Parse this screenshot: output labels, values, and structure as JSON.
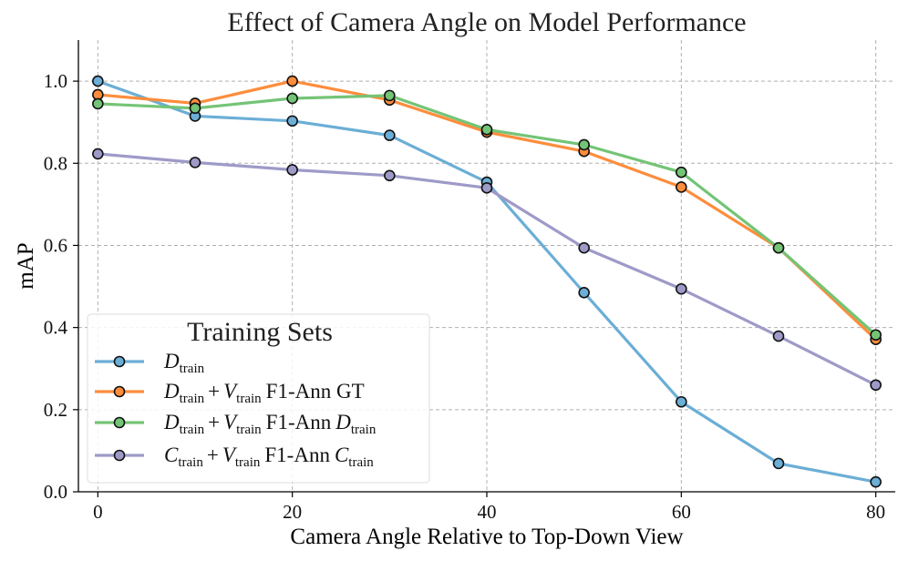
{
  "chart_data": {
    "type": "line",
    "title": "Effect of Camera Angle on Model Performance",
    "xlabel": "Camera Angle Relative to Top-Down View",
    "ylabel": "mAP",
    "xlim": [
      -2,
      82
    ],
    "ylim": [
      0.0,
      1.1
    ],
    "xticks": [
      0,
      20,
      40,
      60,
      80
    ],
    "yticks": [
      0.0,
      0.2,
      0.4,
      0.6,
      0.8,
      1.0
    ],
    "xtick_labels": [
      "0",
      "20",
      "40",
      "60",
      "80"
    ],
    "ytick_labels": [
      "0.0",
      "0.2",
      "0.4",
      "0.6",
      "0.8",
      "1.0"
    ],
    "grid": true,
    "x": [
      0,
      10,
      20,
      30,
      40,
      50,
      60,
      70,
      80
    ],
    "legend": {
      "title": "Training Sets",
      "location": "lower-left",
      "entries": [
        {
          "d": "D",
          "s": "train"
        },
        {
          "d": "D",
          "s": "train",
          "plus": "+",
          "v": "V",
          "vs": "train",
          "suffix": "F1-Ann GT"
        },
        {
          "d": "D",
          "s": "train",
          "plus": "+",
          "v": "V",
          "vs": "train",
          "suffix": "F1-Ann",
          "e": "D",
          "es": "train"
        },
        {
          "d": "C",
          "s": "train",
          "plus": "+",
          "v": "V",
          "vs": "train",
          "suffix": "F1-Ann",
          "e": "C",
          "es": "train"
        }
      ]
    },
    "series": [
      {
        "name": "D_train",
        "color": "#6baed6",
        "values": [
          1.0,
          0.915,
          0.903,
          0.868,
          0.754,
          0.485,
          0.219,
          0.069,
          0.024
        ]
      },
      {
        "name": "D_train + V_train F1-Ann GT",
        "color": "#fd8d3c",
        "values": [
          0.967,
          0.946,
          1.0,
          0.954,
          0.876,
          0.829,
          0.742,
          0.594,
          0.371
        ]
      },
      {
        "name": "D_train + V_train F1-Ann D_train",
        "color": "#74c476",
        "values": [
          0.945,
          0.934,
          0.958,
          0.965,
          0.882,
          0.845,
          0.778,
          0.594,
          0.382
        ]
      },
      {
        "name": "C_train + V_train F1-Ann C_train",
        "color": "#9e9ac8",
        "values": [
          0.823,
          0.802,
          0.784,
          0.77,
          0.74,
          0.594,
          0.494,
          0.379,
          0.26
        ]
      }
    ]
  }
}
